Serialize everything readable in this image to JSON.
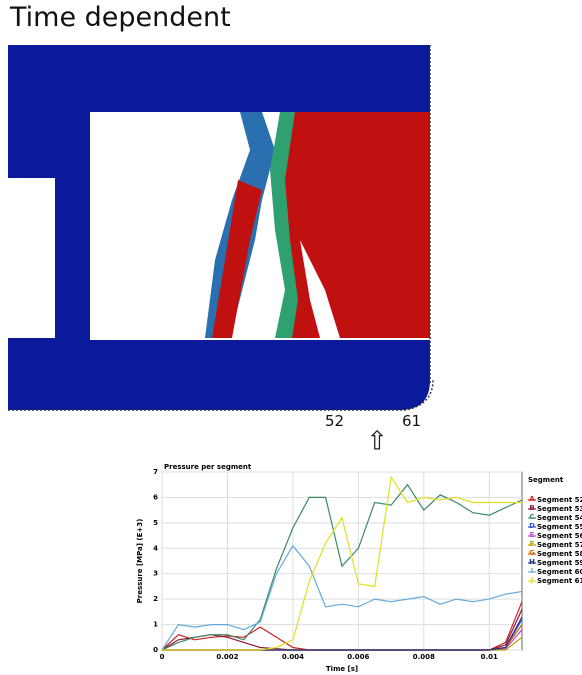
{
  "slide_title": "Time dependent",
  "segment_labels": [
    "52",
    "61"
  ],
  "chart_data": {
    "type": "line",
    "title": "Pressure per segment",
    "xlabel": "Time [s]",
    "ylabel": "Pressure [MPa] (E+3)",
    "x": [
      0,
      0.0005,
      0.001,
      0.0015,
      0.002,
      0.0025,
      0.003,
      0.0035,
      0.004,
      0.0045,
      0.005,
      0.0055,
      0.006,
      0.0065,
      0.007,
      0.0075,
      0.008,
      0.0085,
      0.009,
      0.0095,
      0.01,
      0.0105,
      0.011
    ],
    "xlim": [
      0,
      0.011
    ],
    "xticks": [
      0,
      0.002,
      0.004,
      0.006,
      0.008,
      0.01
    ],
    "ylim": [
      0,
      7
    ],
    "yticks": [
      0,
      1,
      2,
      3,
      4,
      5,
      6,
      7
    ],
    "grid": true,
    "legend_title": "Segment",
    "legend": "right",
    "series": [
      {
        "letter": "A",
        "name": "Segment 52",
        "color": "#d42020",
        "values": [
          0,
          0.6,
          0.4,
          0.5,
          0.55,
          0.5,
          0.9,
          0.5,
          0.1,
          0,
          0,
          0,
          0,
          0,
          0,
          0,
          0,
          0,
          0,
          0,
          0,
          0.3,
          1.9
        ]
      },
      {
        "letter": "B",
        "name": "Segment 53",
        "color": "#8b1a3a",
        "values": [
          0,
          0.4,
          0.5,
          0.6,
          0.5,
          0.3,
          0.1,
          0.05,
          0,
          0,
          0,
          0,
          0,
          0,
          0,
          0,
          0,
          0,
          0,
          0,
          0,
          0.2,
          1.6
        ]
      },
      {
        "letter": "C",
        "name": "Segment 54",
        "color": "#3a8a66",
        "values": [
          0,
          0.3,
          0.5,
          0.6,
          0.6,
          0.4,
          1.2,
          3.2,
          4.8,
          6.0,
          6.0,
          3.3,
          4.0,
          5.8,
          5.7,
          6.5,
          5.5,
          6.1,
          5.8,
          5.4,
          5.3,
          5.6,
          5.9
        ]
      },
      {
        "letter": "D",
        "name": "Segment 55",
        "color": "#3355cc",
        "values": [
          0,
          0,
          0,
          0,
          0,
          0,
          0,
          0,
          0,
          0,
          0,
          0,
          0,
          0,
          0,
          0,
          0,
          0,
          0,
          0,
          0,
          0.1,
          1.2
        ]
      },
      {
        "letter": "E",
        "name": "Segment 56",
        "color": "#cc44cc",
        "values": [
          0,
          0,
          0,
          0,
          0,
          0,
          0,
          0,
          0,
          0,
          0,
          0,
          0,
          0,
          0,
          0,
          0,
          0,
          0,
          0,
          0,
          0.05,
          0.8
        ]
      },
      {
        "letter": "F",
        "name": "Segment 57",
        "color": "#b8a000",
        "values": [
          0,
          0,
          0,
          0,
          0,
          0,
          0,
          0,
          0,
          0,
          0,
          0,
          0,
          0,
          0,
          0,
          0,
          0,
          0,
          0,
          0,
          0,
          0.5
        ]
      },
      {
        "letter": "G",
        "name": "Segment 58",
        "color": "#cc6600",
        "values": [
          0,
          0,
          0,
          0,
          0,
          0,
          0,
          0,
          0,
          0,
          0,
          0,
          0,
          0,
          0,
          0,
          0,
          0,
          0,
          0,
          0,
          0.1,
          1.0
        ]
      },
      {
        "letter": "H",
        "name": "Segment 59",
        "color": "#223388",
        "values": [
          0,
          0,
          0,
          0,
          0,
          0,
          0,
          0,
          0,
          0,
          0,
          0,
          0,
          0,
          0,
          0,
          0,
          0,
          0,
          0,
          0,
          0.1,
          1.3
        ]
      },
      {
        "letter": "I",
        "name": "Segment 60",
        "color": "#66aadd",
        "values": [
          0,
          1.0,
          0.9,
          1.0,
          1.0,
          0.8,
          1.1,
          3.0,
          4.1,
          3.3,
          1.7,
          1.8,
          1.7,
          2.0,
          1.9,
          2.0,
          2.1,
          1.8,
          2.0,
          1.9,
          2.0,
          2.2,
          2.3
        ]
      },
      {
        "letter": "J",
        "name": "Segment 61",
        "color": "#e0e020",
        "values": [
          0,
          0,
          0,
          0,
          0,
          0,
          0,
          0.1,
          0.4,
          2.7,
          4.2,
          5.2,
          2.6,
          2.5,
          6.8,
          5.8,
          6.0,
          5.9,
          6.0,
          5.8,
          5.8,
          5.8,
          5.8
        ]
      }
    ]
  }
}
